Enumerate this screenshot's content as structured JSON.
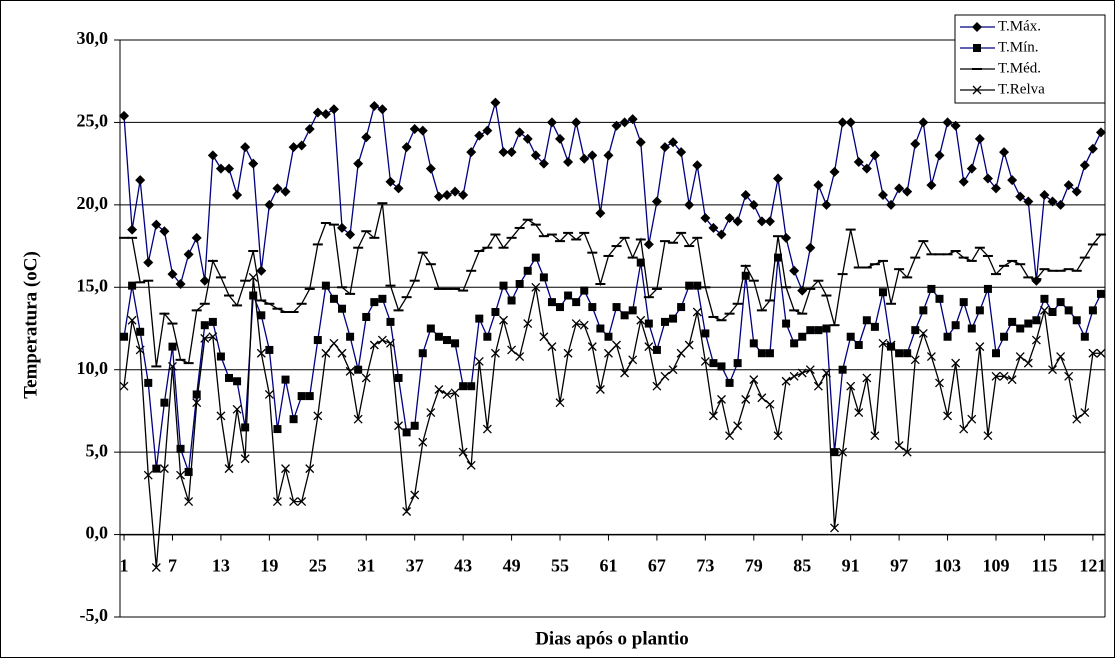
{
  "chart_data": {
    "type": "line",
    "y_label": "Temperatura (oC)",
    "x_label": "Dias após o plantio",
    "x": [
      1,
      2,
      3,
      4,
      5,
      6,
      7,
      8,
      9,
      10,
      11,
      12,
      13,
      14,
      15,
      16,
      17,
      18,
      19,
      20,
      21,
      22,
      23,
      24,
      25,
      26,
      27,
      28,
      29,
      30,
      31,
      32,
      33,
      34,
      35,
      36,
      37,
      38,
      39,
      40,
      41,
      42,
      43,
      44,
      45,
      46,
      47,
      48,
      49,
      50,
      51,
      52,
      53,
      54,
      55,
      56,
      57,
      58,
      59,
      60,
      61,
      62,
      63,
      64,
      65,
      66,
      67,
      68,
      69,
      70,
      71,
      72,
      73,
      74,
      75,
      76,
      77,
      78,
      79,
      80,
      81,
      82,
      83,
      84,
      85,
      86,
      87,
      88,
      89,
      90,
      91,
      92,
      93,
      94,
      95,
      96,
      97,
      98,
      99,
      100,
      101,
      102,
      103,
      104,
      105,
      106,
      107,
      108,
      109,
      110,
      111,
      112,
      113,
      114,
      115,
      116,
      117,
      118,
      119,
      120,
      121,
      122
    ],
    "xlim": [
      0.5,
      122.5
    ],
    "xticks": [
      1,
      7,
      13,
      19,
      25,
      31,
      37,
      43,
      49,
      55,
      61,
      67,
      73,
      79,
      85,
      91,
      97,
      103,
      109,
      115,
      121
    ],
    "ylim": [
      -5,
      30
    ],
    "yticks": [
      {
        "value": -5,
        "label": "-5,0"
      },
      {
        "value": 0,
        "label": "0,0"
      },
      {
        "value": 5,
        "label": "5,0"
      },
      {
        "value": 10,
        "label": "10,0"
      },
      {
        "value": 15,
        "label": "15,0"
      },
      {
        "value": 20,
        "label": "20,0"
      },
      {
        "value": 25,
        "label": "25,0"
      },
      {
        "value": 30,
        "label": "30,0"
      }
    ],
    "grid": true,
    "legend": "upper right",
    "series": [
      {
        "name": "T.Máx.",
        "color": "#000080",
        "marker": "diamond",
        "values": [
          25.4,
          18.5,
          21.5,
          16.5,
          18.8,
          18.4,
          15.8,
          15.2,
          17.0,
          18.0,
          15.4,
          23.0,
          22.2,
          22.2,
          20.6,
          23.5,
          22.5,
          16.0,
          20.0,
          21.0,
          20.8,
          23.5,
          23.6,
          24.6,
          25.6,
          25.5,
          25.8,
          18.6,
          18.2,
          22.5,
          24.1,
          26.0,
          25.8,
          21.4,
          21.0,
          23.5,
          24.6,
          24.5,
          22.2,
          20.5,
          20.6,
          20.8,
          20.6,
          23.2,
          24.2,
          24.5,
          26.2,
          23.2,
          23.2,
          24.4,
          24.0,
          23.0,
          22.5,
          25.0,
          24.0,
          22.6,
          25.0,
          22.8,
          23.0,
          19.5,
          23.0,
          24.8,
          25.0,
          25.2,
          23.8,
          17.6,
          20.2,
          23.5,
          23.8,
          23.2,
          20.0,
          22.4,
          19.2,
          18.6,
          18.2,
          19.2,
          19.0,
          20.6,
          20.0,
          19.0,
          19.0,
          21.6,
          18.0,
          16.0,
          14.8,
          17.4,
          21.2,
          20.0,
          22.0,
          25.0,
          25.0,
          22.6,
          22.2,
          23.0,
          20.6,
          20.0,
          21.0,
          20.8,
          23.7,
          25.0,
          21.2,
          23.0,
          25.0,
          24.8,
          21.4,
          22.2,
          24.0,
          21.6,
          21.0,
          23.2,
          21.5,
          20.5,
          20.2,
          15.4,
          20.6,
          20.2,
          20.0,
          21.2,
          20.8,
          22.4,
          23.4,
          24.4
        ]
      },
      {
        "name": "T.Mín.",
        "color": "#000080",
        "marker": "square",
        "values": [
          12.0,
          15.1,
          12.3,
          9.2,
          4.0,
          8.0,
          11.4,
          5.2,
          3.8,
          8.5,
          12.7,
          12.9,
          10.8,
          9.5,
          9.3,
          6.5,
          14.5,
          13.3,
          11.2,
          6.4,
          9.4,
          7.0,
          8.4,
          8.4,
          11.8,
          15.1,
          14.3,
          13.7,
          12.0,
          10.0,
          13.2,
          14.1,
          14.3,
          12.9,
          9.5,
          6.2,
          6.6,
          11.0,
          12.5,
          12.0,
          11.8,
          11.6,
          9.0,
          9.0,
          13.1,
          12.0,
          13.5,
          15.1,
          14.2,
          15.2,
          16.0,
          16.8,
          15.6,
          14.1,
          13.8,
          14.5,
          14.1,
          14.8,
          13.8,
          12.5,
          12.0,
          13.8,
          13.3,
          13.6,
          16.5,
          12.8,
          11.2,
          12.9,
          13.1,
          13.8,
          15.1,
          15.1,
          12.2,
          10.4,
          10.2,
          9.2,
          10.4,
          15.7,
          11.6,
          11.0,
          11.0,
          16.8,
          12.8,
          11.6,
          12.0,
          12.4,
          12.4,
          12.5,
          5.0,
          10.0,
          12.0,
          11.5,
          13.0,
          12.6,
          14.7,
          11.4,
          11.0,
          11.0,
          12.4,
          13.6,
          14.9,
          14.3,
          12.0,
          12.7,
          14.1,
          12.5,
          13.6,
          14.9,
          11.0,
          12.0,
          12.9,
          12.5,
          12.8,
          13.0,
          14.3,
          13.5,
          14.1,
          13.6,
          13.0,
          12.0,
          13.6,
          14.6
        ]
      },
      {
        "name": "T.Méd.",
        "color": "#000000",
        "marker": "dash",
        "values": [
          18.0,
          18.0,
          15.3,
          15.4,
          10.2,
          13.4,
          12.8,
          10.6,
          10.4,
          13.6,
          14.0,
          16.6,
          15.6,
          14.5,
          13.9,
          15.4,
          17.2,
          14.2,
          14.0,
          13.7,
          13.5,
          13.5,
          14.0,
          14.9,
          17.6,
          18.9,
          18.8,
          15.0,
          14.6,
          17.4,
          18.4,
          18.0,
          20.1,
          15.1,
          13.6,
          14.4,
          15.4,
          17.1,
          16.4,
          14.9,
          14.9,
          14.9,
          14.8,
          16.0,
          17.2,
          17.4,
          18.2,
          17.4,
          18.0,
          18.6,
          19.1,
          18.8,
          18.1,
          18.2,
          17.8,
          18.3,
          17.9,
          18.3,
          17.1,
          15.2,
          16.9,
          17.5,
          18.0,
          16.8,
          17.9,
          14.4,
          14.9,
          17.8,
          17.7,
          18.3,
          17.5,
          18.0,
          15.0,
          13.2,
          13.0,
          13.4,
          14.0,
          16.3,
          15.4,
          13.6,
          14.2,
          18.1,
          15.0,
          13.6,
          13.4,
          14.9,
          15.4,
          14.5,
          12.7,
          15.8,
          18.5,
          16.2,
          16.2,
          16.4,
          16.6,
          14.0,
          16.1,
          15.6,
          16.8,
          17.8,
          17.0,
          17.0,
          17.0,
          17.2,
          16.8,
          16.6,
          17.4,
          16.9,
          15.8,
          16.3,
          16.6,
          16.4,
          15.6,
          15.5,
          16.1,
          16.0,
          16.0,
          16.1,
          16.0,
          16.8,
          17.6,
          18.2
        ]
      },
      {
        "name": "T.Relva",
        "color": "#000000",
        "marker": "x",
        "values": [
          9.0,
          13.0,
          11.2,
          3.6,
          -2.0,
          4.0,
          10.2,
          3.6,
          2.0,
          8.0,
          11.9,
          12.0,
          7.2,
          4.0,
          7.6,
          4.6,
          15.6,
          11.0,
          8.5,
          2.0,
          4.0,
          2.0,
          2.0,
          4.0,
          7.2,
          11.0,
          11.6,
          11.0,
          9.9,
          7.0,
          9.5,
          11.5,
          11.8,
          11.6,
          6.6,
          1.4,
          2.4,
          5.6,
          7.4,
          8.8,
          8.5,
          8.6,
          5.0,
          4.2,
          10.5,
          6.4,
          11.0,
          13.0,
          11.2,
          10.8,
          12.8,
          15.0,
          12.0,
          11.4,
          8.0,
          11.0,
          12.8,
          12.7,
          11.4,
          8.8,
          11.0,
          11.5,
          9.8,
          10.6,
          13.0,
          11.4,
          9.0,
          9.6,
          10.0,
          11.0,
          11.5,
          13.5,
          10.5,
          7.2,
          8.2,
          6.0,
          6.6,
          8.2,
          9.4,
          8.3,
          7.9,
          6.0,
          9.3,
          9.6,
          9.8,
          10.0,
          9.0,
          9.8,
          0.4,
          5.0,
          9.0,
          7.4,
          9.5,
          6.0,
          11.6,
          11.5,
          5.4,
          5.0,
          10.6,
          12.2,
          10.8,
          9.2,
          7.2,
          10.4,
          6.4,
          7.0,
          11.4,
          6.0,
          9.6,
          9.6,
          9.4,
          10.8,
          10.4,
          11.8,
          13.6,
          10.0,
          10.8,
          9.6,
          7.0,
          7.4,
          11.0,
          11.0
        ]
      }
    ]
  }
}
